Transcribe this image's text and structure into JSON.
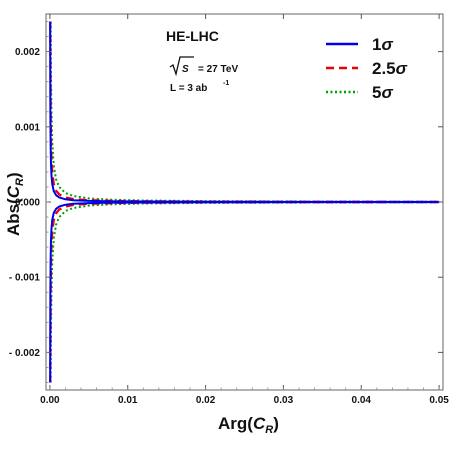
{
  "chart_data": {
    "type": "line",
    "title": "",
    "xlabel_main": "Arg(",
    "xlabel_var": "C",
    "xlabel_sub": "R",
    "xlabel_close": ")",
    "ylabel_main": "Abs(",
    "ylabel_var": "C",
    "ylabel_sub": "R",
    "ylabel_close": ")",
    "xlim": [
      -0.0005,
      0.0505
    ],
    "ylim": [
      -0.0025,
      0.0025
    ],
    "x_ticks": [
      0.0,
      0.01,
      0.02,
      0.03,
      0.04,
      0.05
    ],
    "x_tick_labels": [
      "0.00",
      "0.01",
      "0.02",
      "0.03",
      "0.04",
      "0.05"
    ],
    "y_ticks": [
      0.002,
      0.001,
      0.0,
      -0.001,
      -0.002
    ],
    "y_tick_labels": [
      "0.002",
      "0.001",
      "0.000",
      "- 0.001",
      "- 0.002"
    ],
    "annotations": {
      "collider": "HE-LHC",
      "energy_sqrt": "S",
      "energy_value": "= 27 TeV",
      "lumi_prefix": "L = 3 ab",
      "lumi_exp": "-1"
    },
    "legend_position": "top-right",
    "grid": false,
    "series": [
      {
        "name_num": "1",
        "name_sigma": "σ",
        "color": "#0000ee",
        "dash": "solid",
        "upper": [
          [
            3e-05,
            0.0024
          ],
          [
            6e-05,
            0.0012
          ],
          [
            0.0001,
            0.00072
          ],
          [
            0.00015,
            0.00048
          ],
          [
            0.0002,
            0.00036
          ],
          [
            0.0003,
            0.00024
          ],
          [
            0.0005,
            0.000144
          ],
          [
            0.0008,
            9e-05
          ],
          [
            0.0012,
            6e-05
          ],
          [
            0.002,
            3.6e-05
          ],
          [
            0.003,
            2.4e-05
          ],
          [
            0.005,
            1.44e-05
          ],
          [
            0.008,
            9e-06
          ],
          [
            0.012,
            6e-06
          ],
          [
            0.02,
            3.6e-06
          ],
          [
            0.03,
            2.4e-06
          ],
          [
            0.04,
            1.8e-06
          ],
          [
            0.05,
            1.44e-06
          ]
        ]
      },
      {
        "name_num": "2.5",
        "name_sigma": "σ",
        "color": "#ee0000",
        "dash": "dashed",
        "upper": [
          [
            5e-05,
            0.0024
          ],
          [
            0.0001,
            0.0012
          ],
          [
            0.00015,
            0.0008
          ],
          [
            0.0002,
            0.0006
          ],
          [
            0.0003,
            0.0004
          ],
          [
            0.0005,
            0.00024
          ],
          [
            0.0008,
            0.00015
          ],
          [
            0.0012,
            0.0001
          ],
          [
            0.002,
            6e-05
          ],
          [
            0.003,
            4e-05
          ],
          [
            0.005,
            2.4e-05
          ],
          [
            0.008,
            1.5e-05
          ],
          [
            0.012,
            1e-05
          ],
          [
            0.02,
            6e-06
          ],
          [
            0.03,
            4e-06
          ],
          [
            0.04,
            3e-06
          ],
          [
            0.05,
            2.4e-06
          ]
        ]
      },
      {
        "name_num": "5",
        "name_sigma": "σ",
        "color": "#00a000",
        "dash": "dotted",
        "upper": [
          [
            0.0001,
            0.0024
          ],
          [
            0.00015,
            0.0016
          ],
          [
            0.0002,
            0.0012
          ],
          [
            0.0003,
            0.0008
          ],
          [
            0.0005,
            0.00048
          ],
          [
            0.0008,
            0.0003
          ],
          [
            0.0012,
            0.0002
          ],
          [
            0.002,
            0.00012
          ],
          [
            0.003,
            8e-05
          ],
          [
            0.005,
            4.8e-05
          ],
          [
            0.008,
            3e-05
          ],
          [
            0.012,
            2e-05
          ],
          [
            0.02,
            1.2e-05
          ],
          [
            0.03,
            8e-06
          ],
          [
            0.04,
            6e-06
          ],
          [
            0.05,
            4.8e-06
          ]
        ]
      }
    ]
  }
}
